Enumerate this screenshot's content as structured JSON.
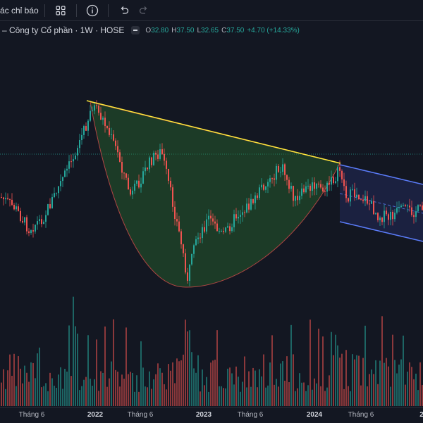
{
  "toolbar": {
    "indicators_label": "ác chỉ báo",
    "icons": [
      "layout-grid-icon",
      "info-circle-icon",
      "undo-icon",
      "redo-icon"
    ]
  },
  "legend": {
    "title": "– Công ty Cổ phần · 1W · HOSE",
    "open_label": "O",
    "open": "32.80",
    "high_label": "H",
    "high": "37.50",
    "low_label": "L",
    "low": "32.65",
    "close_label": "C",
    "close": "37.50",
    "change": "+4.70 (+14.33%)"
  },
  "colors": {
    "background": "#131722",
    "up": "#26a69a",
    "down": "#ef5350",
    "trendline": "#ffeb3b",
    "cup_fill": "#2e7d32",
    "channel": "#5b7cfa"
  },
  "xaxis": {
    "ticks": [
      {
        "label": "Tháng 6",
        "year": false
      },
      {
        "label": "2022",
        "year": true
      },
      {
        "label": "Tháng 6",
        "year": false
      },
      {
        "label": "2023",
        "year": true
      },
      {
        "label": "Tháng 6",
        "year": false
      },
      {
        "label": "2024",
        "year": true
      },
      {
        "label": "Tháng 6",
        "year": false
      },
      {
        "label": "2",
        "year": true
      }
    ]
  }
}
